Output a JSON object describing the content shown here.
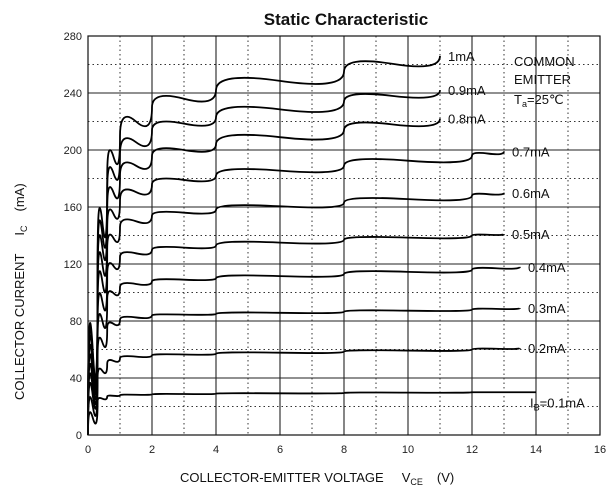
{
  "chart_data": {
    "type": "line",
    "title": "Static Characteristic",
    "xlabel": "COLLECTOR-EMITTER VOLTAGE",
    "xlabel_symbol": "V",
    "xlabel_subscript": "CE",
    "xlabel_unit": "(V)",
    "ylabel": "COLLECTOR CURRENT",
    "ylabel_symbol": "I",
    "ylabel_subscript": "C",
    "ylabel_unit": "(mA)",
    "xlim": [
      0,
      16
    ],
    "ylim": [
      0,
      280
    ],
    "x_ticks": [
      "0",
      "2",
      "4",
      "6",
      "8",
      "10",
      "12",
      "14",
      "16"
    ],
    "y_ticks": [
      "0",
      "40",
      "80",
      "120",
      "160",
      "200",
      "240",
      "280"
    ],
    "grid": true,
    "grid_style": "dotted",
    "conditions": {
      "line1": "COMMON",
      "line2": "EMITTER",
      "temp_symbol": "T",
      "temp_subscript": "a",
      "temp_value": "=25℃"
    },
    "ib_prefix": "I",
    "ib_subscript": "B",
    "series": [
      {
        "name": "=0.1mA",
        "x": [
          0,
          0.3,
          0.6,
          1,
          2,
          4,
          8,
          12,
          14
        ],
        "values": [
          0,
          24,
          27,
          28,
          28.5,
          29,
          29.5,
          30,
          30
        ]
      },
      {
        "name": "0.2mA",
        "x": [
          0,
          0.3,
          0.6,
          1,
          2,
          4,
          8,
          12,
          13.5
        ],
        "values": [
          0,
          40,
          50,
          54,
          56,
          57,
          58.5,
          60,
          61
        ]
      },
      {
        "name": "0.3mA",
        "x": [
          0,
          0.3,
          0.6,
          1,
          2,
          4,
          8,
          12,
          13.5
        ],
        "values": [
          0,
          55,
          75,
          81,
          84,
          85,
          86.5,
          88,
          89
        ]
      },
      {
        "name": "0.4mA",
        "x": [
          0,
          0.3,
          0.6,
          1,
          2,
          4,
          8,
          12,
          13.5
        ],
        "values": [
          0,
          65,
          95,
          104,
          108,
          110,
          113,
          116,
          118
        ]
      },
      {
        "name": "0.5mA",
        "x": [
          0,
          0.3,
          0.6,
          1,
          2,
          4,
          8,
          12,
          13
        ],
        "values": [
          0,
          75,
          112,
          125,
          130,
          133,
          137,
          140,
          141
        ]
      },
      {
        "name": "0.6mA",
        "x": [
          0,
          0.3,
          0.6,
          1,
          2,
          4,
          8,
          12,
          13
        ],
        "values": [
          0,
          85,
          130,
          146,
          154,
          158,
          163,
          168,
          170
        ]
      },
      {
        "name": "0.7mA",
        "x": [
          0,
          0.3,
          0.6,
          1,
          2,
          4,
          8,
          12,
          13
        ],
        "values": [
          0,
          95,
          145,
          165,
          176,
          182,
          189,
          196,
          199
        ]
      },
      {
        "name": "0.8mA",
        "x": [
          0,
          0.3,
          0.6,
          1,
          2,
          4,
          8,
          11
        ],
        "values": [
          0,
          105,
          158,
          182,
          196,
          204,
          214,
          222
        ]
      },
      {
        "name": "0.9mA",
        "x": [
          0,
          0.3,
          0.6,
          1,
          2,
          4,
          8,
          11
        ],
        "values": [
          0,
          112,
          170,
          197,
          214,
          223,
          234,
          242
        ]
      },
      {
        "name": "1mA",
        "x": [
          0,
          0.3,
          0.6,
          1,
          2,
          4,
          8,
          11
        ],
        "values": [
          0,
          118,
          180,
          210,
          230,
          242,
          255,
          266
        ]
      }
    ]
  }
}
